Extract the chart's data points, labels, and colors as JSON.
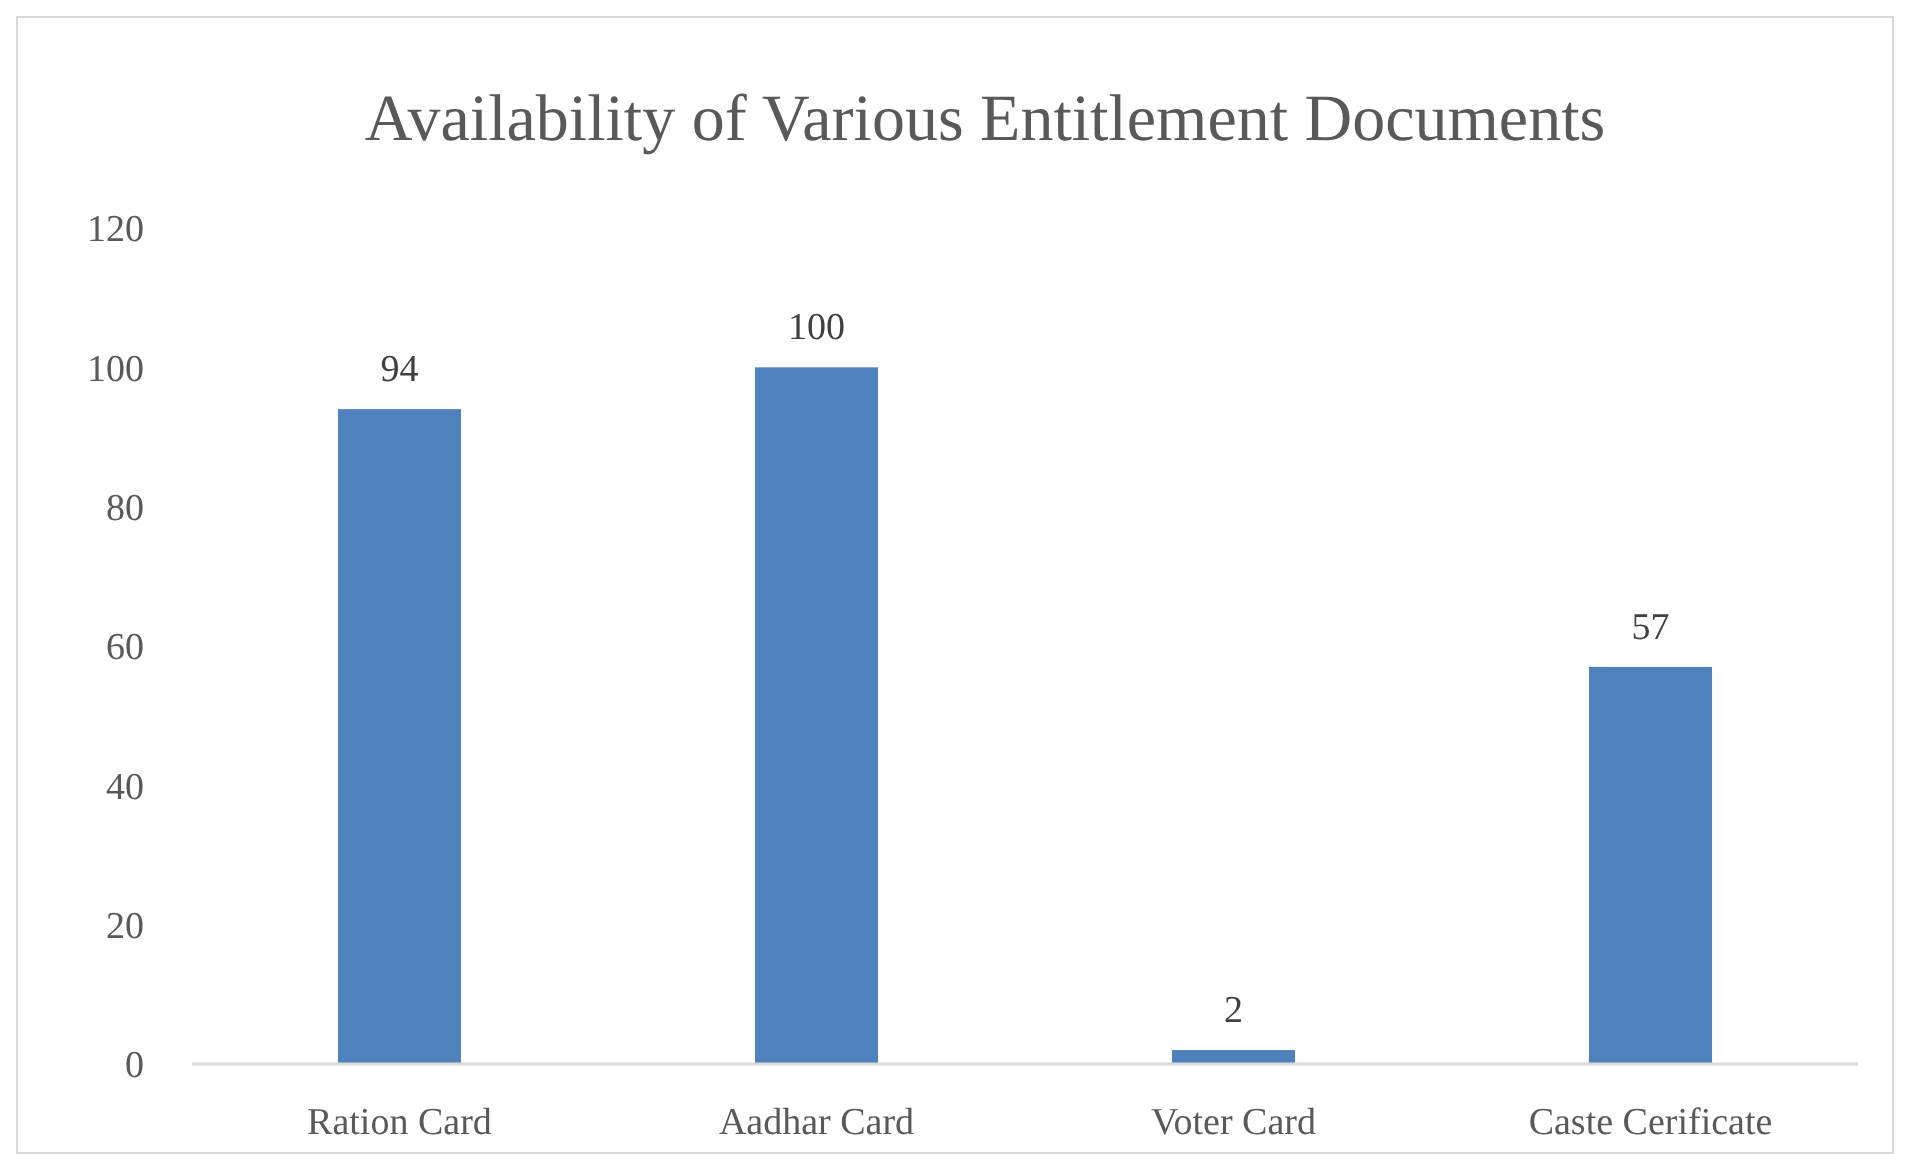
{
  "chart_data": {
    "type": "bar",
    "title": "Availability of Various Entitlement Documents",
    "categories": [
      "Ration Card",
      "Aadhar Card",
      "Voter Card",
      "Caste Cerificate"
    ],
    "values": [
      94,
      100,
      2,
      57
    ],
    "color": "#4f81bd",
    "ylim": [
      0,
      120
    ],
    "yticks": [
      0,
      20,
      40,
      60,
      80,
      100,
      120
    ],
    "grid": false,
    "data_labels": true
  }
}
